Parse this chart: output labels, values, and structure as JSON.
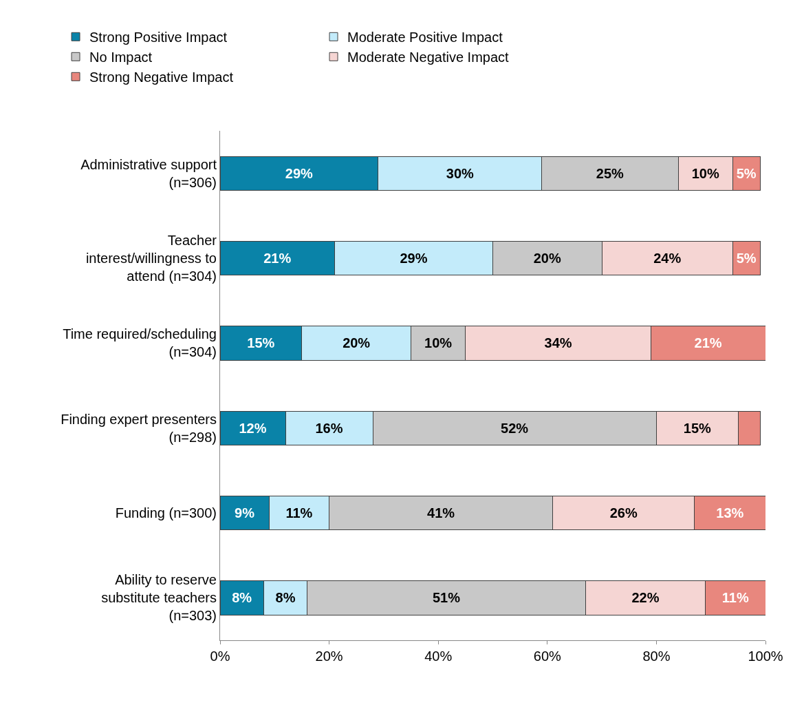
{
  "chart_data": {
    "type": "bar",
    "orientation": "horizontal",
    "stacked": true,
    "categories": [
      "Administrative support\n(n=306)",
      "Teacher\ninterest/willingness to\nattend (n=304)",
      "Time required/scheduling\n(n=304)",
      "Finding expert presenters\n(n=298)",
      "Funding (n=300)",
      "Ability to reserve\nsubstitute teachers\n(n=303)"
    ],
    "series": [
      {
        "name": "Strong Positive Impact",
        "color": "#0a83a8",
        "values": [
          29,
          21,
          15,
          12,
          9,
          8
        ],
        "value_labels": [
          "29%",
          "21%",
          "15%",
          "12%",
          "9%",
          "8%"
        ]
      },
      {
        "name": "Moderate Positive Impact",
        "color": "#c3ebfa",
        "values": [
          30,
          29,
          20,
          16,
          11,
          8
        ],
        "value_labels": [
          "30%",
          "29%",
          "20%",
          "16%",
          "11%",
          "8%"
        ]
      },
      {
        "name": "No Impact",
        "color": "#c8c8c8",
        "values": [
          25,
          20,
          10,
          52,
          41,
          51
        ],
        "value_labels": [
          "25%",
          "20%",
          "10%",
          "52%",
          "41%",
          "51%"
        ]
      },
      {
        "name": "Moderate Negative Impact",
        "color": "#f5d5d3",
        "values": [
          10,
          24,
          34,
          15,
          26,
          22
        ],
        "value_labels": [
          "10%",
          "24%",
          "34%",
          "15%",
          "26%",
          "22%"
        ]
      },
      {
        "name": "Strong Negative Impact",
        "color": "#e8877e",
        "values": [
          5,
          5,
          21,
          4,
          13,
          11
        ],
        "value_labels": [
          "5%",
          "5%",
          "21%",
          null,
          "13%",
          "11%"
        ]
      }
    ],
    "xlim": [
      0,
      100
    ],
    "xticks": [
      {
        "value": 0,
        "label": "0%"
      },
      {
        "value": 20,
        "label": "20%"
      },
      {
        "value": 40,
        "label": "40%"
      },
      {
        "value": 60,
        "label": "60%"
      },
      {
        "value": 80,
        "label": "80%"
      },
      {
        "value": 100,
        "label": "100%"
      }
    ],
    "legend": "top"
  }
}
